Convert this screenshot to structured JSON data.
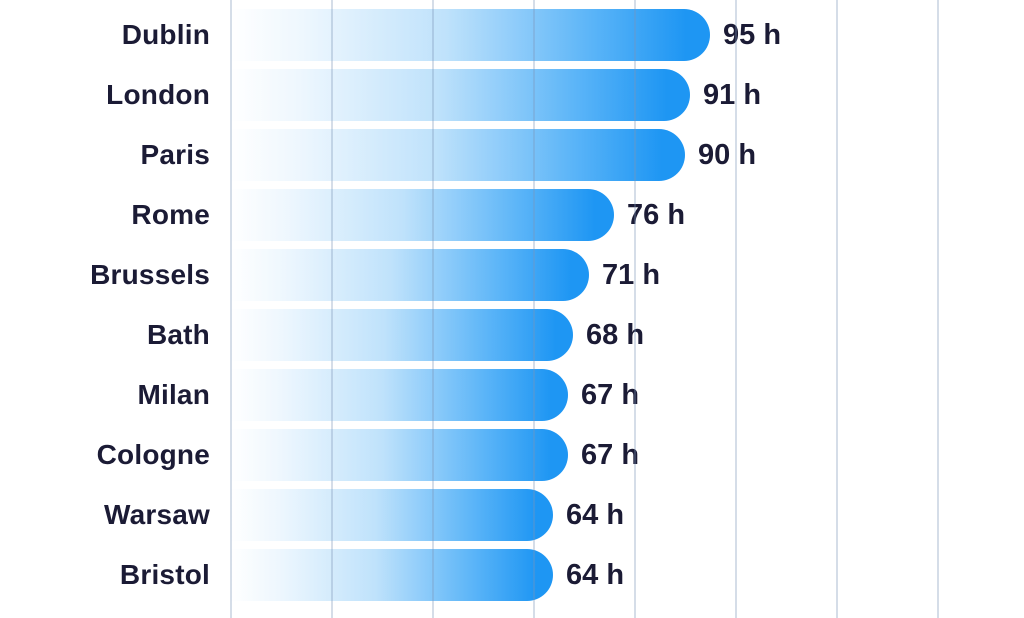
{
  "chart_data": {
    "type": "bar",
    "orientation": "horizontal",
    "unit": "h",
    "categories": [
      "Dublin",
      "London",
      "Paris",
      "Rome",
      "Brussels",
      "Bath",
      "Milan",
      "Cologne",
      "Warsaw",
      "Bristol"
    ],
    "values": [
      95,
      91,
      90,
      76,
      71,
      68,
      67,
      67,
      64,
      64
    ],
    "value_labels": [
      "95 h",
      "91 h",
      "90 h",
      "76 h",
      "71 h",
      "68 h",
      "67 h",
      "67 h",
      "64 h",
      "64 h"
    ],
    "xlim": [
      0,
      157
    ],
    "gridline_interval": 20,
    "grid": "vertical gridlines only, no axis tick labels, no title",
    "legend": "none",
    "colors": {
      "label_text": "#1b1b35",
      "bar_gradient_start": "#ffffff",
      "bar_gradient_mid": "#bfe2fb",
      "bar_gradient_end": "#1e96f3",
      "gridline": "#d7dde9"
    }
  }
}
